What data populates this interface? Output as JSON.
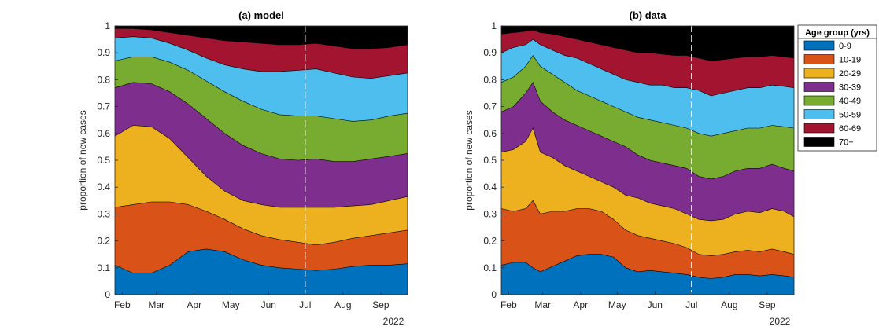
{
  "chart_data": [
    {
      "type": "area",
      "title": "(a) model",
      "xlabel": "",
      "ylabel": "proportion of new cases",
      "ylim": [
        0,
        1
      ],
      "yticks": [
        "0",
        "0.1",
        "0.2",
        "0.3",
        "0.4",
        "0.5",
        "0.6",
        "0.7",
        "0.8",
        "0.9",
        "1"
      ],
      "xlim": [
        "2022-01-26",
        "2022-09-23"
      ],
      "xticks": [
        "Feb",
        "Mar",
        "Apr",
        "May",
        "Jun",
        "Jul",
        "Aug",
        "Sep"
      ],
      "xtick_dates": [
        "2022-02-01",
        "2022-03-01",
        "2022-04-01",
        "2022-05-01",
        "2022-06-01",
        "2022-07-01",
        "2022-08-01",
        "2022-09-01"
      ],
      "year_label": "2022",
      "reference_line": "2022-07-01",
      "stacking": "cumulative boundaries",
      "x": [
        "2022-01-26",
        "2022-02-10",
        "2022-02-25",
        "2022-03-12",
        "2022-03-27",
        "2022-04-11",
        "2022-04-26",
        "2022-05-11",
        "2022-05-26",
        "2022-06-10",
        "2022-06-25",
        "2022-07-10",
        "2022-07-25",
        "2022-08-09",
        "2022-08-24",
        "2022-09-08",
        "2022-09-23"
      ],
      "boundaries": [
        [
          0.11,
          0.08,
          0.08,
          0.11,
          0.16,
          0.17,
          0.16,
          0.13,
          0.11,
          0.1,
          0.095,
          0.09,
          0.095,
          0.105,
          0.11,
          0.11,
          0.115
        ],
        [
          0.325,
          0.335,
          0.345,
          0.345,
          0.335,
          0.31,
          0.28,
          0.245,
          0.22,
          0.205,
          0.195,
          0.185,
          0.195,
          0.21,
          0.22,
          0.23,
          0.24
        ],
        [
          0.59,
          0.63,
          0.625,
          0.58,
          0.51,
          0.44,
          0.385,
          0.35,
          0.335,
          0.325,
          0.325,
          0.325,
          0.325,
          0.33,
          0.335,
          0.35,
          0.365
        ],
        [
          0.77,
          0.79,
          0.785,
          0.755,
          0.71,
          0.655,
          0.6,
          0.555,
          0.525,
          0.505,
          0.5,
          0.505,
          0.495,
          0.495,
          0.505,
          0.515,
          0.525
        ],
        [
          0.87,
          0.885,
          0.885,
          0.865,
          0.835,
          0.795,
          0.755,
          0.72,
          0.69,
          0.67,
          0.665,
          0.665,
          0.655,
          0.645,
          0.65,
          0.665,
          0.675
        ],
        [
          0.955,
          0.96,
          0.955,
          0.935,
          0.91,
          0.88,
          0.855,
          0.84,
          0.83,
          0.83,
          0.835,
          0.84,
          0.825,
          0.81,
          0.805,
          0.815,
          0.825
        ],
        [
          0.99,
          0.99,
          0.985,
          0.975,
          0.965,
          0.955,
          0.945,
          0.94,
          0.935,
          0.93,
          0.93,
          0.935,
          0.925,
          0.915,
          0.915,
          0.92,
          0.93
        ]
      ]
    },
    {
      "type": "area",
      "title": "(b) data",
      "xlabel": "",
      "ylabel": "proportion of new cases",
      "ylim": [
        0,
        1
      ],
      "yticks": [
        "0",
        "0.1",
        "0.2",
        "0.3",
        "0.4",
        "0.5",
        "0.6",
        "0.7",
        "0.8",
        "0.9",
        "1"
      ],
      "xlim": [
        "2022-01-26",
        "2022-09-23"
      ],
      "xticks": [
        "Feb",
        "Mar",
        "Apr",
        "May",
        "Jun",
        "Jul",
        "Aug",
        "Sep"
      ],
      "xtick_dates": [
        "2022-02-01",
        "2022-03-01",
        "2022-04-01",
        "2022-05-01",
        "2022-06-01",
        "2022-07-01",
        "2022-08-01",
        "2022-09-01"
      ],
      "year_label": "2022",
      "reference_line": "2022-07-01",
      "stacking": "cumulative boundaries",
      "x": [
        "2022-01-26",
        "2022-02-05",
        "2022-02-15",
        "2022-02-21",
        "2022-02-27",
        "2022-03-09",
        "2022-03-19",
        "2022-03-29",
        "2022-04-08",
        "2022-04-18",
        "2022-04-28",
        "2022-05-08",
        "2022-05-18",
        "2022-05-28",
        "2022-06-07",
        "2022-06-17",
        "2022-06-27",
        "2022-07-07",
        "2022-07-17",
        "2022-07-27",
        "2022-08-06",
        "2022-08-16",
        "2022-08-26",
        "2022-09-05",
        "2022-09-15",
        "2022-09-23"
      ],
      "boundaries": [
        [
          0.11,
          0.12,
          0.12,
          0.1,
          0.085,
          0.105,
          0.125,
          0.145,
          0.15,
          0.15,
          0.14,
          0.1,
          0.085,
          0.09,
          0.085,
          0.08,
          0.075,
          0.065,
          0.06,
          0.065,
          0.075,
          0.075,
          0.07,
          0.075,
          0.07,
          0.065
        ],
        [
          0.32,
          0.31,
          0.32,
          0.35,
          0.3,
          0.31,
          0.31,
          0.32,
          0.32,
          0.31,
          0.28,
          0.24,
          0.22,
          0.21,
          0.2,
          0.19,
          0.175,
          0.15,
          0.145,
          0.15,
          0.16,
          0.165,
          0.16,
          0.17,
          0.16,
          0.15
        ],
        [
          0.53,
          0.54,
          0.57,
          0.62,
          0.53,
          0.51,
          0.48,
          0.46,
          0.44,
          0.42,
          0.4,
          0.37,
          0.36,
          0.34,
          0.33,
          0.32,
          0.3,
          0.28,
          0.275,
          0.28,
          0.3,
          0.31,
          0.305,
          0.32,
          0.31,
          0.29
        ],
        [
          0.68,
          0.7,
          0.75,
          0.79,
          0.72,
          0.68,
          0.65,
          0.63,
          0.61,
          0.59,
          0.57,
          0.55,
          0.52,
          0.5,
          0.49,
          0.48,
          0.47,
          0.44,
          0.43,
          0.44,
          0.46,
          0.47,
          0.47,
          0.485,
          0.47,
          0.46
        ],
        [
          0.79,
          0.81,
          0.85,
          0.89,
          0.85,
          0.82,
          0.79,
          0.76,
          0.74,
          0.72,
          0.7,
          0.68,
          0.66,
          0.65,
          0.64,
          0.63,
          0.62,
          0.6,
          0.59,
          0.6,
          0.61,
          0.62,
          0.62,
          0.63,
          0.625,
          0.62
        ],
        [
          0.9,
          0.92,
          0.93,
          0.95,
          0.93,
          0.91,
          0.89,
          0.88,
          0.86,
          0.84,
          0.82,
          0.8,
          0.79,
          0.78,
          0.78,
          0.77,
          0.77,
          0.76,
          0.74,
          0.75,
          0.76,
          0.77,
          0.77,
          0.78,
          0.775,
          0.77
        ],
        [
          0.97,
          0.975,
          0.98,
          0.985,
          0.975,
          0.97,
          0.96,
          0.95,
          0.94,
          0.93,
          0.92,
          0.91,
          0.9,
          0.9,
          0.895,
          0.89,
          0.89,
          0.88,
          0.87,
          0.875,
          0.88,
          0.885,
          0.885,
          0.89,
          0.885,
          0.88
        ]
      ]
    }
  ],
  "legend": {
    "title": "Age group (yrs)",
    "placement": "right",
    "entries": [
      {
        "label": "0-9",
        "color": "#0072BD"
      },
      {
        "label": "10-19",
        "color": "#D95319"
      },
      {
        "label": "20-29",
        "color": "#EDB120"
      },
      {
        "label": "30-39",
        "color": "#7E2F8E"
      },
      {
        "label": "40-49",
        "color": "#77AC30"
      },
      {
        "label": "50-59",
        "color": "#4DBEEE"
      },
      {
        "label": "60-69",
        "color": "#A2142F"
      },
      {
        "label": "70+",
        "color": "#000000"
      }
    ]
  },
  "reference_line_color": "#FFFFFF"
}
